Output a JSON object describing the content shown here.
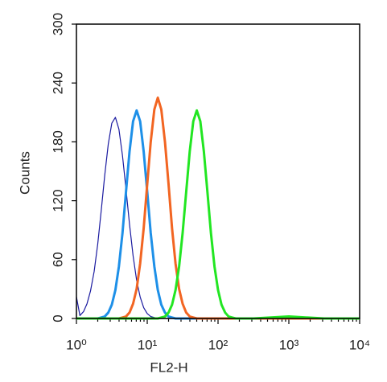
{
  "chart_data": {
    "type": "line",
    "x_label": "FL2-H",
    "y_label": "Counts",
    "x_log": true,
    "xlim": [
      1,
      10000
    ],
    "xticks": [
      {
        "value": 1,
        "label": "10⁰"
      },
      {
        "value": 10,
        "label": "10¹"
      },
      {
        "value": 100,
        "label": "10²"
      },
      {
        "value": 1000,
        "label": "10³"
      },
      {
        "value": 10000,
        "label": "10⁴"
      }
    ],
    "ylim": [
      0,
      300
    ],
    "yticks": [
      0,
      60,
      120,
      180,
      240,
      300
    ],
    "x": [
      1,
      1.12,
      1.26,
      1.41,
      1.58,
      1.78,
      2,
      2.24,
      2.51,
      2.82,
      3.16,
      3.55,
      3.98,
      4.47,
      5.01,
      5.62,
      6.31,
      7.08,
      7.94,
      8.91,
      10,
      11.2,
      12.6,
      14.1,
      15.8,
      17.8,
      20,
      22.4,
      25.1,
      28.2,
      31.6,
      35.5,
      39.8,
      44.7,
      50.1,
      56.2,
      63.1,
      70.8,
      79.4,
      89.1,
      100,
      112,
      126,
      141,
      158,
      178,
      200,
      224,
      251,
      282,
      316,
      1000,
      3160,
      10000
    ],
    "series": [
      {
        "color": "#1a1aa0",
        "width": 1.2,
        "values": [
          22,
          3,
          7,
          15,
          28,
          48,
          76,
          110,
          146,
          178,
          199,
          205,
          193,
          166,
          132,
          96,
          64,
          39,
          22,
          11,
          5,
          2,
          1,
          0,
          0,
          0,
          0,
          0,
          0,
          0,
          0,
          0,
          0,
          0,
          0,
          0,
          0,
          0,
          0,
          0,
          0,
          0,
          0,
          0,
          0,
          0,
          0,
          0,
          0,
          0,
          0,
          0,
          0,
          0
        ]
      },
      {
        "color": "#1e90e8",
        "width": 3,
        "values": [
          0,
          0,
          0,
          0,
          0,
          0,
          0,
          1,
          2,
          6,
          14,
          29,
          53,
          87,
          129,
          170,
          201,
          212,
          201,
          170,
          129,
          87,
          53,
          29,
          14,
          6,
          2,
          1,
          0,
          0,
          0,
          0,
          0,
          0,
          0,
          0,
          0,
          0,
          0,
          0,
          0,
          0,
          0,
          0,
          0,
          0,
          0,
          0,
          0,
          0,
          0,
          0,
          0,
          0
        ]
      },
      {
        "color": "#f26522",
        "width": 3,
        "values": [
          0,
          0,
          0,
          0,
          0,
          0,
          0,
          0,
          0,
          0,
          0,
          0,
          0,
          1,
          2,
          6,
          15,
          30,
          56,
          92,
          137,
          180,
          213,
          225,
          213,
          180,
          137,
          92,
          56,
          30,
          15,
          6,
          2,
          1,
          0,
          0,
          0,
          0,
          0,
          0,
          0,
          0,
          0,
          0,
          0,
          0,
          0,
          0,
          0,
          0,
          0,
          0,
          0,
          0
        ]
      },
      {
        "color": "#22e622",
        "width": 3,
        "values": [
          0,
          0,
          0,
          0,
          0,
          0,
          0,
          0,
          0,
          0,
          0,
          0,
          0,
          0,
          0,
          0,
          0,
          0,
          0,
          0,
          0,
          0,
          0,
          0,
          1,
          2,
          6,
          14,
          29,
          53,
          87,
          129,
          170,
          201,
          212,
          201,
          170,
          129,
          87,
          53,
          29,
          14,
          6,
          2,
          1,
          0,
          0,
          0,
          0,
          0,
          0,
          2,
          0,
          0
        ]
      }
    ]
  }
}
